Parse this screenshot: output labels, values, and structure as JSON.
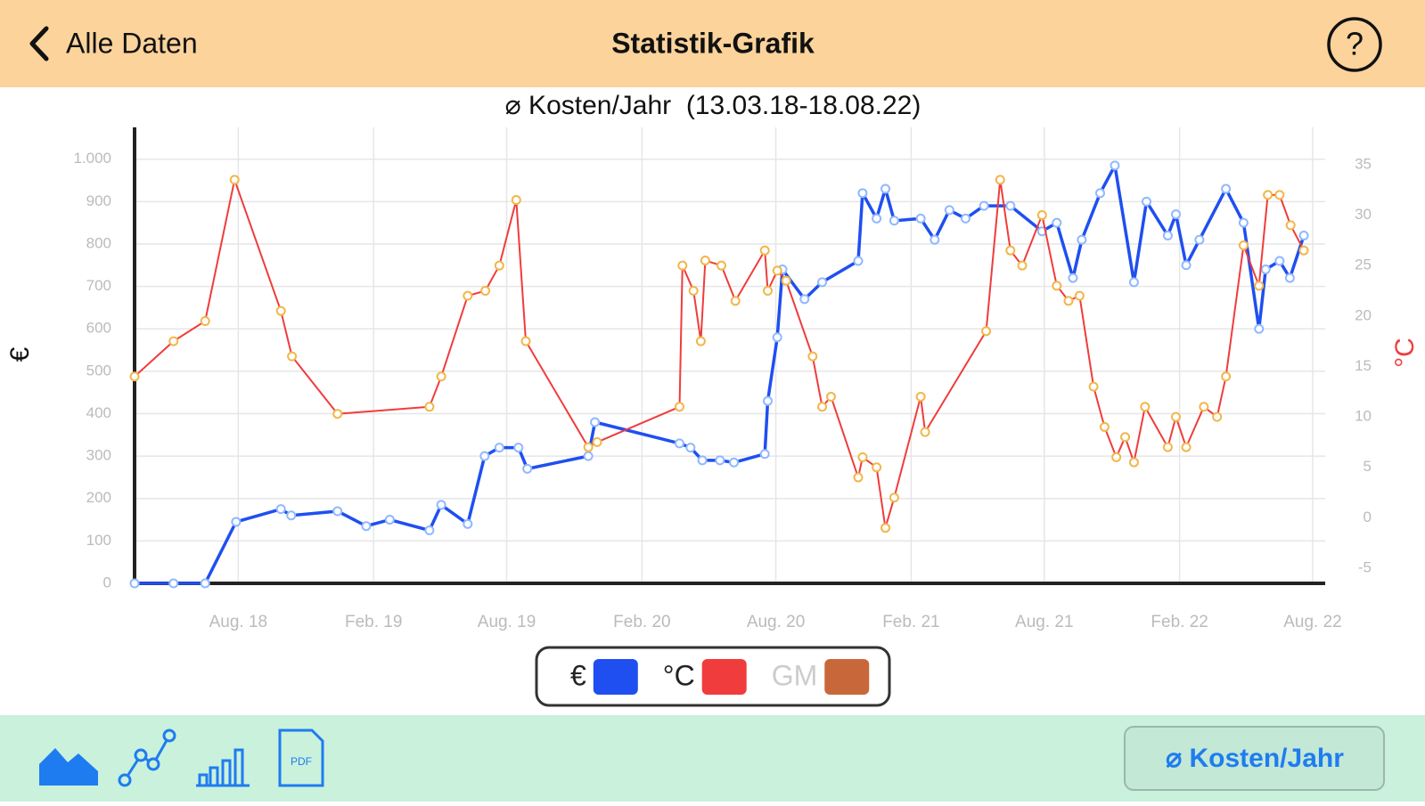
{
  "header": {
    "back": "Alle Daten",
    "title": "Statistik-Grafik",
    "help": "?"
  },
  "footer": {
    "pdf_icon": "PDF",
    "button": "⌀ Kosten/Jahr"
  },
  "chart_data": {
    "type": "line",
    "title": "⌀ Kosten/Jahr  (13.03.18-18.08.22)",
    "y_label": "€",
    "y2_label": "°C",
    "grid": true,
    "xlim": [
      "2018-03-13",
      "2022-08-18"
    ],
    "xticks": [
      {
        "value": "2018-08-01",
        "label": "Aug. 18"
      },
      {
        "value": "2019-02-01",
        "label": "Feb. 19"
      },
      {
        "value": "2019-08-01",
        "label": "Aug. 19"
      },
      {
        "value": "2020-02-01",
        "label": "Feb. 20"
      },
      {
        "value": "2020-08-01",
        "label": "Aug. 20"
      },
      {
        "value": "2021-02-01",
        "label": "Feb. 21"
      },
      {
        "value": "2021-08-01",
        "label": "Aug. 21"
      },
      {
        "value": "2022-02-01",
        "label": "Feb. 22"
      },
      {
        "value": "2022-08-01",
        "label": "Aug. 22"
      }
    ],
    "ylim": [
      0,
      1075
    ],
    "yticks": [
      0,
      100,
      200,
      300,
      400,
      500,
      600,
      700,
      800,
      900,
      {
        "value": 1000,
        "label": "1.000"
      }
    ],
    "y2lim": [
      -6.5,
      38.7
    ],
    "y2ticks": [
      -5,
      0,
      5,
      10,
      15,
      20,
      25,
      30,
      35
    ],
    "series": [
      {
        "name": "€",
        "color": "#1f4ff0",
        "marker_color": "#8fb8ff",
        "x": [
          "2018-03-13",
          "2018-05-05",
          "2018-06-17",
          "2018-07-29",
          "2018-09-28",
          "2018-10-12",
          "2018-12-14",
          "2019-01-22",
          "2019-02-23",
          "2019-04-18",
          "2019-05-04",
          "2019-06-09",
          "2019-07-02",
          "2019-07-22",
          "2019-08-17",
          "2019-08-29",
          "2019-11-20",
          "2019-11-29",
          "2020-03-23",
          "2020-04-07",
          "2020-04-23",
          "2020-05-17",
          "2020-06-05",
          "2020-07-17",
          "2020-07-21",
          "2020-08-03",
          "2020-08-10",
          "2020-09-09",
          "2020-10-03",
          "2020-11-21",
          "2020-11-27",
          "2020-12-16",
          "2020-12-28",
          "2021-01-09",
          "2021-02-14",
          "2021-03-05",
          "2021-03-25",
          "2021-04-16",
          "2021-05-11",
          "2021-06-16",
          "2021-07-29",
          "2021-08-18",
          "2021-09-09",
          "2021-09-21",
          "2021-10-16",
          "2021-11-05",
          "2021-12-01",
          "2021-12-18",
          "2022-01-16",
          "2022-01-27",
          "2022-02-10",
          "2022-02-28",
          "2022-04-05",
          "2022-04-29",
          "2022-05-20",
          "2022-05-29",
          "2022-06-17",
          "2022-07-01",
          "2022-07-20"
        ],
        "values": [
          0,
          0,
          0,
          145,
          175,
          160,
          170,
          135,
          150,
          125,
          185,
          140,
          300,
          320,
          320,
          270,
          300,
          380,
          330,
          320,
          290,
          290,
          285,
          305,
          430,
          580,
          740,
          670,
          710,
          760,
          920,
          860,
          930,
          855,
          860,
          810,
          880,
          860,
          890,
          890,
          830,
          850,
          720,
          810,
          920,
          985,
          710,
          900,
          820,
          870,
          750,
          810,
          930,
          850,
          600,
          740,
          760,
          720,
          820
        ]
      },
      {
        "name": "°C",
        "color": "#f03c3c",
        "marker_color": "#f2b64a",
        "axis": "y2",
        "x": [
          "2018-03-13",
          "2018-05-05",
          "2018-06-17",
          "2018-07-27",
          "2018-09-28",
          "2018-10-13",
          "2018-12-14",
          "2019-04-18",
          "2019-05-04",
          "2019-06-09",
          "2019-07-03",
          "2019-07-22",
          "2019-08-14",
          "2019-08-27",
          "2019-11-20",
          "2019-12-02",
          "2020-03-23",
          "2020-03-27",
          "2020-04-11",
          "2020-04-21",
          "2020-04-27",
          "2020-05-19",
          "2020-06-07",
          "2020-07-17",
          "2020-07-21",
          "2020-08-03",
          "2020-08-15",
          "2020-09-20",
          "2020-10-03",
          "2020-10-15",
          "2020-11-21",
          "2020-11-27",
          "2020-12-16",
          "2020-12-28",
          "2021-01-09",
          "2021-02-14",
          "2021-02-20",
          "2021-05-14",
          "2021-06-02",
          "2021-06-16",
          "2021-07-02",
          "2021-07-29",
          "2021-08-18",
          "2021-09-03",
          "2021-09-18",
          "2021-10-07",
          "2021-10-22",
          "2021-11-07",
          "2021-11-19",
          "2021-12-01",
          "2021-12-16",
          "2022-01-16",
          "2022-01-27",
          "2022-02-10",
          "2022-03-06",
          "2022-03-24",
          "2022-04-05",
          "2022-04-29",
          "2022-05-20",
          "2022-06-01",
          "2022-06-17",
          "2022-07-02",
          "2022-07-20"
        ],
        "values": [
          14,
          17.5,
          19.5,
          33.5,
          20.5,
          16,
          10.3,
          11,
          14,
          22,
          22.5,
          25,
          31.5,
          17.5,
          7,
          7.5,
          11,
          25,
          22.5,
          17.5,
          25.5,
          25,
          21.5,
          26.5,
          22.5,
          24.5,
          23.5,
          16,
          11,
          12,
          4,
          6,
          5,
          -1,
          2,
          12,
          8.5,
          18.5,
          33.5,
          26.5,
          25,
          30,
          23,
          21.5,
          22,
          13,
          9,
          6,
          8,
          5.5,
          11,
          7,
          10,
          7,
          11,
          10,
          14,
          27,
          23,
          32,
          32,
          29,
          26.5
        ]
      },
      {
        "name": "GM",
        "color": "#c8683a",
        "hidden": true,
        "x": [],
        "values": []
      }
    ]
  }
}
